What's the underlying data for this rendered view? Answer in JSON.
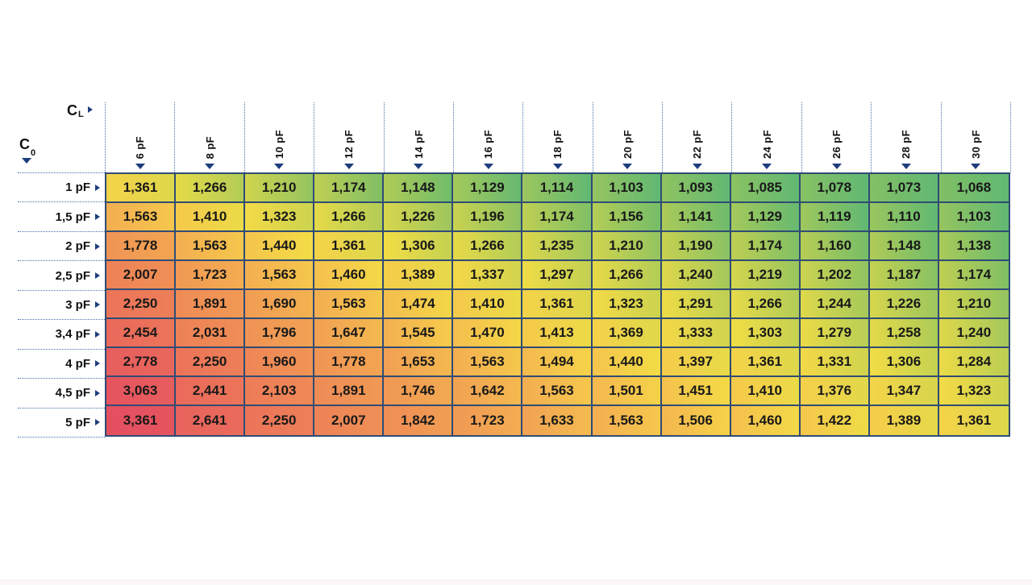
{
  "axes": {
    "col": {
      "symbol": "C",
      "subscript": "L"
    },
    "row": {
      "symbol": "C",
      "subscript": "0"
    }
  },
  "colors": {
    "grid_border": "#2f4c74",
    "triangle": "#1d3d7c",
    "dotted_line": "#4c6fae",
    "value_text": "#191919"
  },
  "chart_data": {
    "type": "heatmap",
    "x_axis_label": "CL",
    "y_axis_label": "C0",
    "columns": [
      "6 pF",
      "8 pF",
      "10 pF",
      "12 pF",
      "14 pF",
      "16 pF",
      "18 pF",
      "20 pF",
      "22 pF",
      "24 pF",
      "26 pF",
      "28 pF",
      "30 pF"
    ],
    "rows": [
      "1 pF",
      "1,5 pF",
      "2 pF",
      "2,5 pF",
      "3 pF",
      "3,4 pF",
      "4 pF",
      "4,5 pF",
      "5 pF"
    ],
    "values": [
      [
        "1,361",
        "1,266",
        "1,210",
        "1,174",
        "1,148",
        "1,129",
        "1,114",
        "1,103",
        "1,093",
        "1,085",
        "1,078",
        "1,073",
        "1,068"
      ],
      [
        "1,563",
        "1,410",
        "1,323",
        "1,266",
        "1,226",
        "1,196",
        "1,174",
        "1,156",
        "1,141",
        "1,129",
        "1,119",
        "1,110",
        "1,103"
      ],
      [
        "1,778",
        "1,563",
        "1,440",
        "1,361",
        "1,306",
        "1,266",
        "1,235",
        "1,210",
        "1,190",
        "1,174",
        "1,160",
        "1,148",
        "1,138"
      ],
      [
        "2,007",
        "1,723",
        "1,563",
        "1,460",
        "1,389",
        "1,337",
        "1,297",
        "1,266",
        "1,240",
        "1,219",
        "1,202",
        "1,187",
        "1,174"
      ],
      [
        "2,250",
        "1,891",
        "1,690",
        "1,563",
        "1,474",
        "1,410",
        "1,361",
        "1,323",
        "1,291",
        "1,266",
        "1,244",
        "1,226",
        "1,210"
      ],
      [
        "2,454",
        "2,031",
        "1,796",
        "1,647",
        "1,545",
        "1,470",
        "1,413",
        "1,369",
        "1,333",
        "1,303",
        "1,279",
        "1,258",
        "1,240"
      ],
      [
        "2,778",
        "2,250",
        "1,960",
        "1,778",
        "1,653",
        "1,563",
        "1,494",
        "1,440",
        "1,397",
        "1,361",
        "1,331",
        "1,306",
        "1,284"
      ],
      [
        "3,063",
        "2,441",
        "2,103",
        "1,891",
        "1,746",
        "1,642",
        "1,563",
        "1,501",
        "1,451",
        "1,410",
        "1,376",
        "1,347",
        "1,323"
      ],
      [
        "3,361",
        "2,641",
        "2,250",
        "2,007",
        "1,842",
        "1,723",
        "1,633",
        "1,563",
        "1,506",
        "1,460",
        "1,422",
        "1,389",
        "1,361"
      ]
    ],
    "value_range": [
      1.068,
      3.361
    ],
    "color_scale_stops": [
      [
        1.068,
        "#61b873"
      ],
      [
        1.1,
        "#72bc69"
      ],
      [
        1.135,
        "#89c163"
      ],
      [
        1.175,
        "#9fc75d"
      ],
      [
        1.23,
        "#bdcf53"
      ],
      [
        1.3,
        "#ddd74b"
      ],
      [
        1.37,
        "#f2dd45"
      ],
      [
        1.45,
        "#f6cf4a"
      ],
      [
        1.57,
        "#f4b94f"
      ],
      [
        1.73,
        "#f1a053"
      ],
      [
        1.95,
        "#ef8d56"
      ],
      [
        2.2,
        "#ed7c58"
      ],
      [
        2.55,
        "#ea6a5b"
      ],
      [
        2.95,
        "#e75d5e"
      ],
      [
        3.37,
        "#e44f60"
      ]
    ],
    "legend_position": "none",
    "grid": true
  }
}
